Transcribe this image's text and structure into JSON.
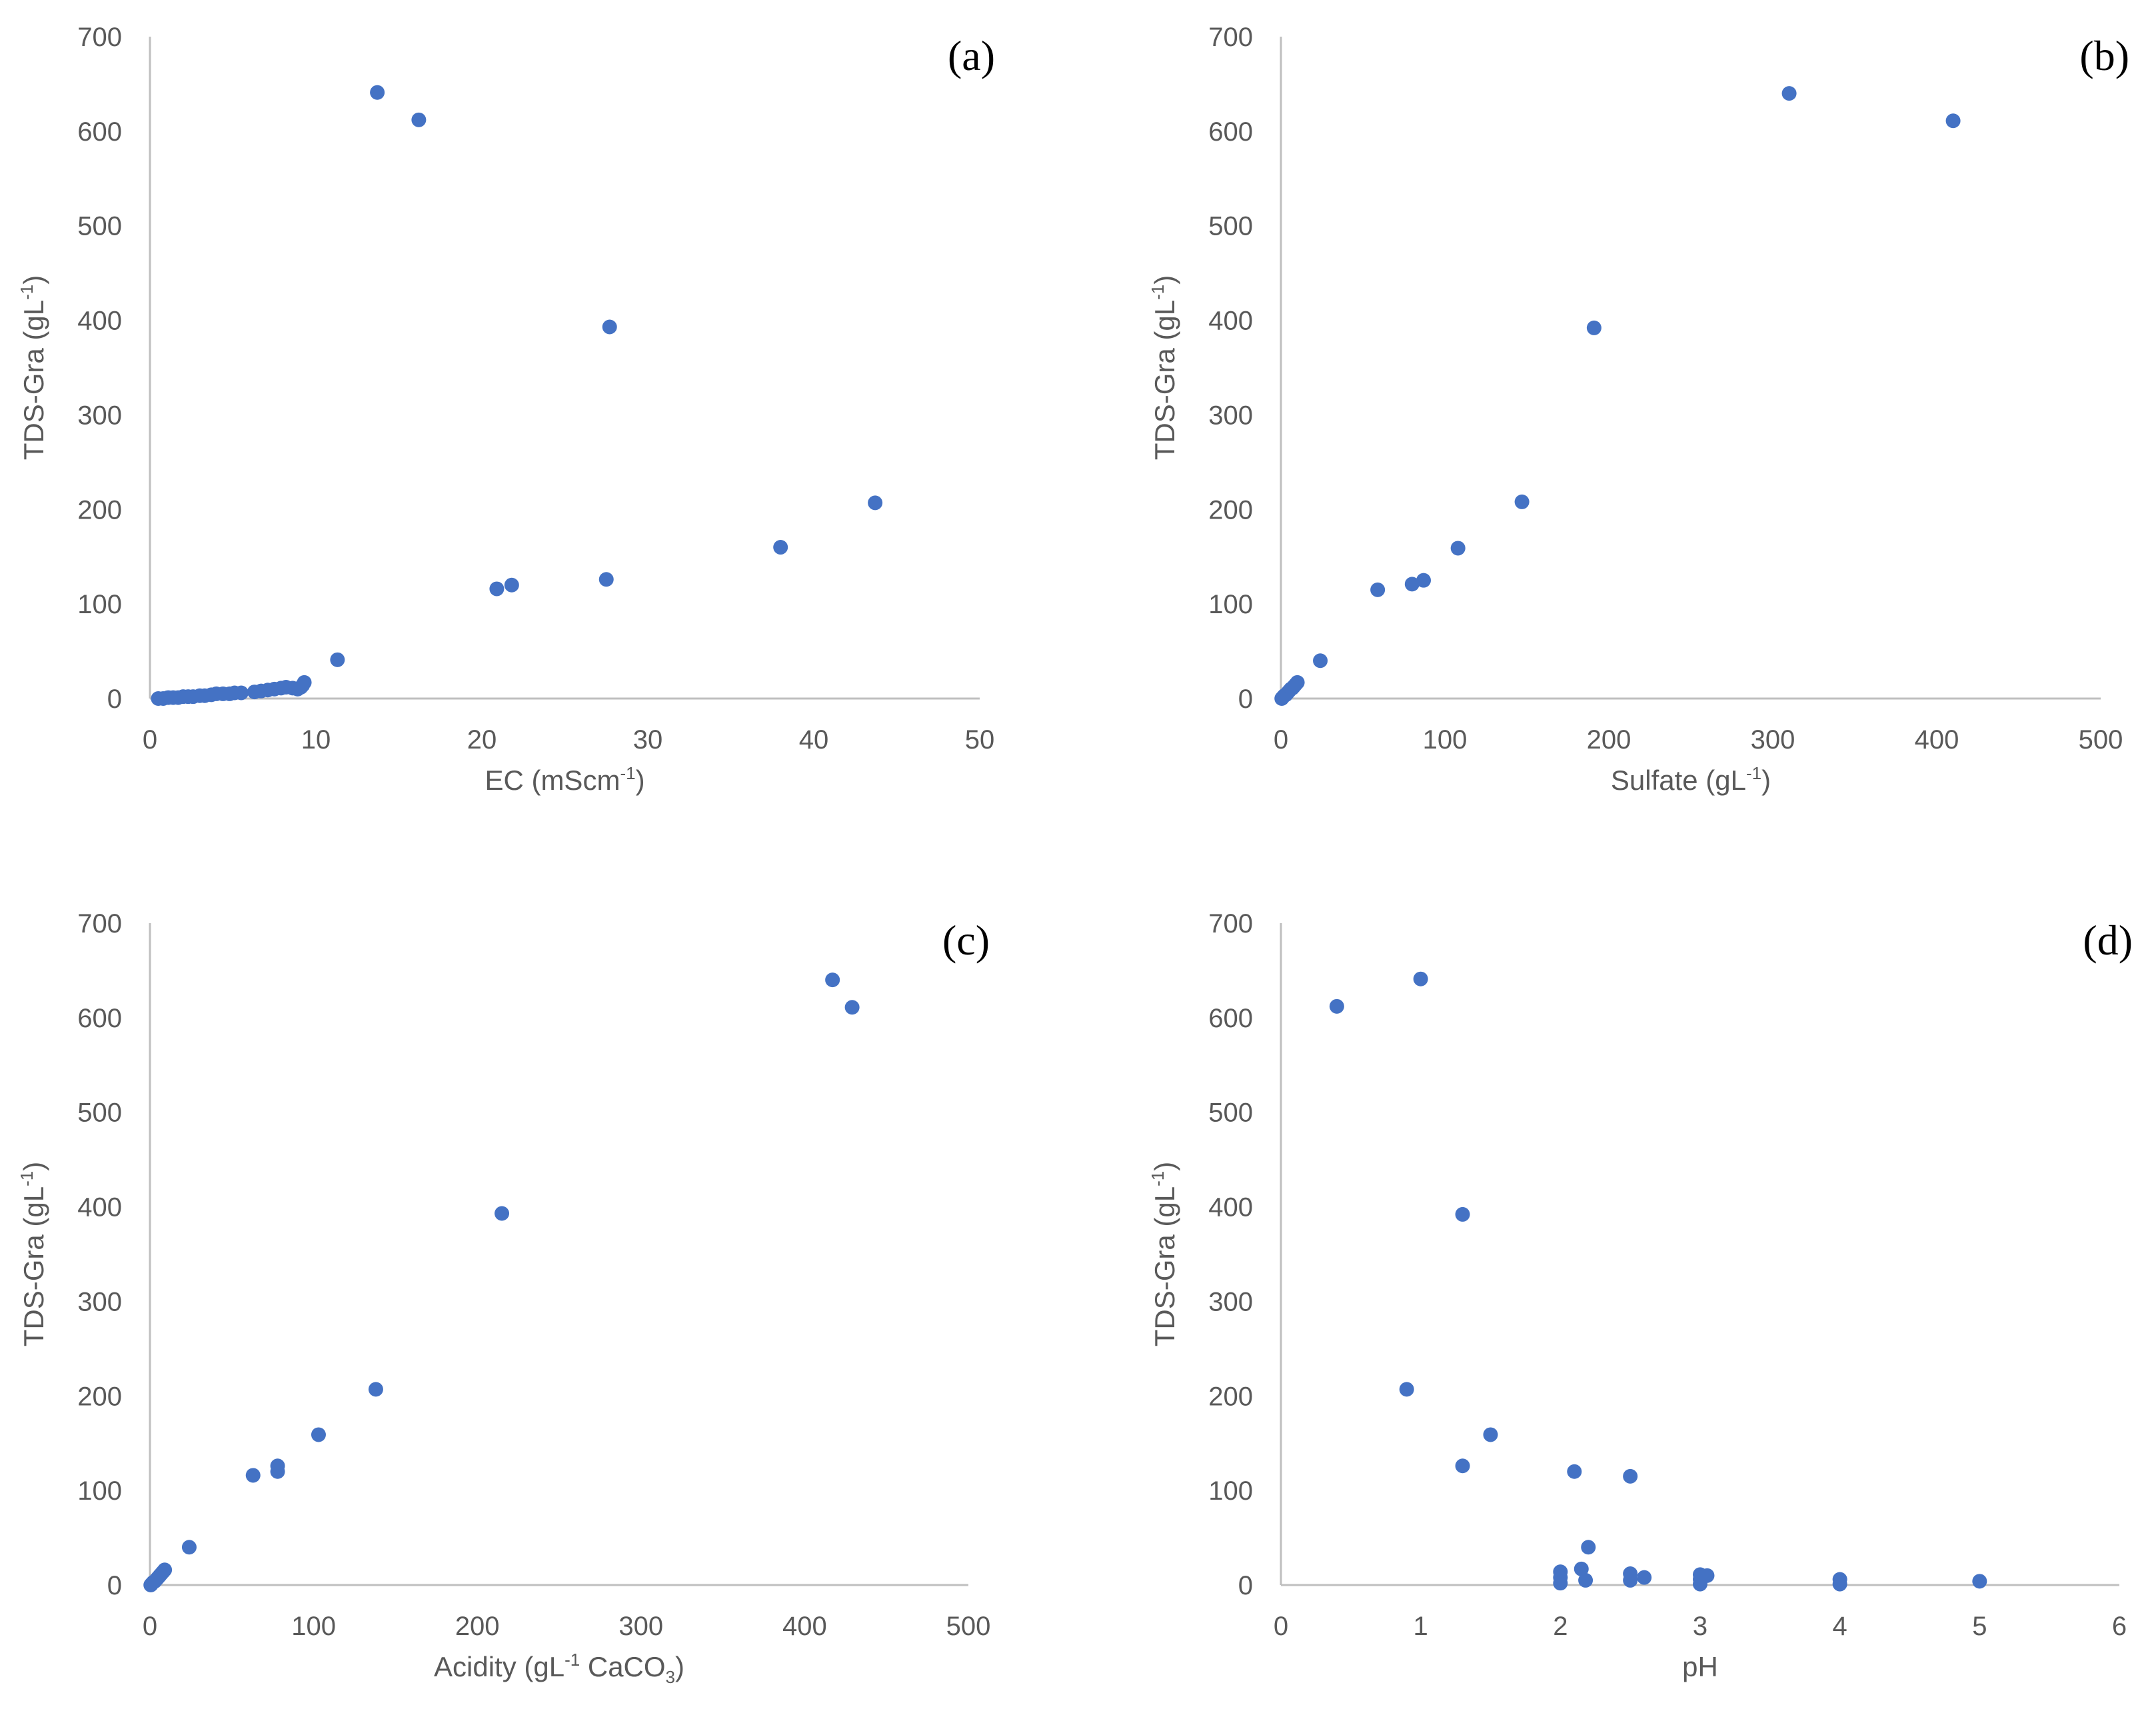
{
  "figure": {
    "marker_color": "#4472C4",
    "axis_color": "#BFBFBF",
    "text_color": "#595959"
  },
  "chart_data": [
    {
      "type": "scatter",
      "panel": "(a)",
      "xlabel": {
        "text": "EC (mScm",
        "sup": "-1",
        "end": ")"
      },
      "ylabel": {
        "text": "TDS-Gra (gL",
        "sup": "-1",
        "end": ")"
      },
      "xlim": [
        0,
        50
      ],
      "ylim": [
        0,
        700
      ],
      "xticks": [
        "0",
        "10",
        "20",
        "30",
        "40",
        "50"
      ],
      "yticks": [
        "0",
        "100",
        "200",
        "300",
        "400",
        "500",
        "600",
        "700"
      ],
      "x": [
        13.7,
        16.2,
        27.7,
        43.7,
        38,
        27.5,
        21.8,
        20.9,
        11.3,
        9.3,
        9.2,
        9.1,
        8.9,
        8.6,
        8.2,
        7.9,
        7.5,
        7.1,
        6.7,
        6.3,
        5.5,
        5.1,
        4.8,
        4.4,
        4,
        3.7,
        3.3,
        3,
        2.6,
        2.3,
        2,
        1.7,
        1.4,
        1.1,
        0.8,
        0.5
      ],
      "y": [
        641,
        612,
        393,
        207,
        160,
        126,
        120,
        116,
        41,
        17,
        14,
        12,
        10,
        11,
        12,
        11,
        10,
        9,
        8,
        7,
        6,
        6,
        5,
        5,
        5,
        4,
        3,
        3,
        2,
        2,
        2,
        1,
        1,
        1,
        0,
        0
      ]
    },
    {
      "type": "scatter",
      "panel": "(b)",
      "xlabel": {
        "text": "Sulfate (gL",
        "sup": "-1",
        "end": ")"
      },
      "ylabel": {
        "text": "TDS-Gra (gL",
        "sup": "-1",
        "end": ")"
      },
      "xlim": [
        0,
        500
      ],
      "ylim": [
        0,
        700
      ],
      "xticks": [
        "0",
        "100",
        "200",
        "300",
        "400",
        "500"
      ],
      "yticks": [
        "0",
        "100",
        "200",
        "300",
        "400",
        "500",
        "600",
        "700"
      ],
      "x": [
        310,
        410,
        191,
        147,
        108,
        87,
        80,
        59,
        24,
        10,
        9,
        8,
        7,
        6,
        5,
        4,
        3,
        2,
        1,
        0.5
      ],
      "y": [
        640,
        611,
        392,
        208,
        159,
        125,
        121,
        115,
        40,
        17,
        15,
        13,
        11,
        10,
        8,
        6,
        4,
        3,
        1,
        0
      ]
    },
    {
      "type": "scatter",
      "panel": "(c)",
      "xlabel": {
        "text": "Acidity (gL",
        "sup": "-1",
        "mid": " CaCO",
        "sub": "3",
        "end": ")"
      },
      "ylabel": {
        "text": "TDS-Gra (gL",
        "sup": "-1",
        "end": ")"
      },
      "xlim": [
        0,
        500
      ],
      "ylim": [
        0,
        700
      ],
      "xticks": [
        "0",
        "100",
        "200",
        "300",
        "400",
        "500"
      ],
      "yticks": [
        "0",
        "100",
        "200",
        "300",
        "400",
        "500",
        "600",
        "700"
      ],
      "x": [
        417,
        429,
        215,
        138,
        103,
        78,
        78,
        63,
        24,
        9,
        8,
        7,
        6,
        5,
        4,
        3,
        2,
        1,
        0.5
      ],
      "y": [
        640,
        611,
        393,
        207,
        159,
        126,
        120,
        116,
        40,
        16,
        14,
        12,
        10,
        8,
        6,
        4,
        3,
        1,
        0
      ]
    },
    {
      "type": "scatter",
      "panel": "(d)",
      "xlabel": {
        "text": "pH"
      },
      "ylabel": {
        "text": "TDS-Gra (gL",
        "sup": "-1",
        "end": ")"
      },
      "xlim": [
        0,
        6
      ],
      "ylim": [
        0,
        700
      ],
      "xticks": [
        "0",
        "1",
        "2",
        "3",
        "4",
        "5",
        "6"
      ],
      "yticks": [
        "0",
        "100",
        "200",
        "300",
        "400",
        "500",
        "600",
        "700"
      ],
      "x": [
        0.4,
        1,
        1.3,
        0.9,
        1.5,
        1.3,
        2.1,
        2.5,
        2.2,
        2,
        2,
        2,
        2.15,
        2.18,
        2.5,
        2.5,
        2.6,
        3,
        3,
        3,
        3.05,
        4,
        4,
        5
      ],
      "y": [
        612,
        641,
        392,
        207,
        159,
        126,
        120,
        115,
        40,
        14,
        8,
        2,
        17,
        5,
        12,
        5,
        8,
        11,
        6,
        1,
        10,
        6,
        1,
        4
      ]
    }
  ]
}
